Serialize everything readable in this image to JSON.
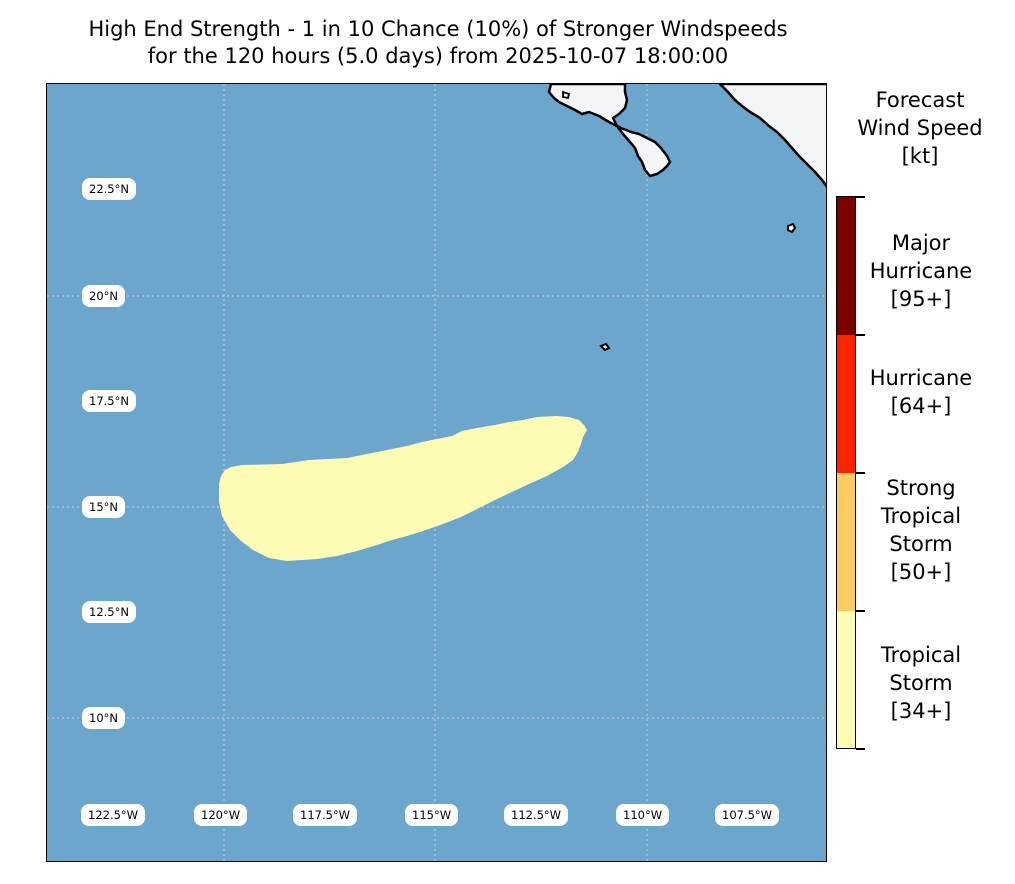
{
  "title": {
    "line1": "High End Strength - 1 in 10 Chance (10%) of Stronger Windspeeds",
    "line2": "for the 120 hours (5.0 days) from 2025-10-07 18:00:00"
  },
  "map": {
    "lat_labels": [
      "22.5°N",
      "20°N",
      "17.5°N",
      "15°N",
      "12.5°N",
      "10°N"
    ],
    "lon_labels": [
      "122.5°W",
      "120°W",
      "117.5°W",
      "115°W",
      "112.5°W",
      "110°W",
      "107.5°W"
    ],
    "colors": {
      "ocean": "#6ca6cd",
      "land": "#f4f5f7",
      "coast": "#000000",
      "swath": "#fefcb4"
    }
  },
  "colorbar": {
    "title_lines": [
      "Forecast",
      "Wind Speed",
      "[kt]"
    ],
    "categories": [
      {
        "lines": [
          "Major",
          "Hurricane",
          "[95+]"
        ],
        "color": "#7a0000"
      },
      {
        "lines": [
          "Hurricane",
          "[64+]"
        ],
        "color": "#fe2400"
      },
      {
        "lines": [
          "Strong",
          "Tropical",
          "Storm",
          "[50+]"
        ],
        "color": "#fecb61"
      },
      {
        "lines": [
          "Tropical",
          "Storm",
          "[34+]"
        ],
        "color": "#fefcb4"
      }
    ]
  }
}
